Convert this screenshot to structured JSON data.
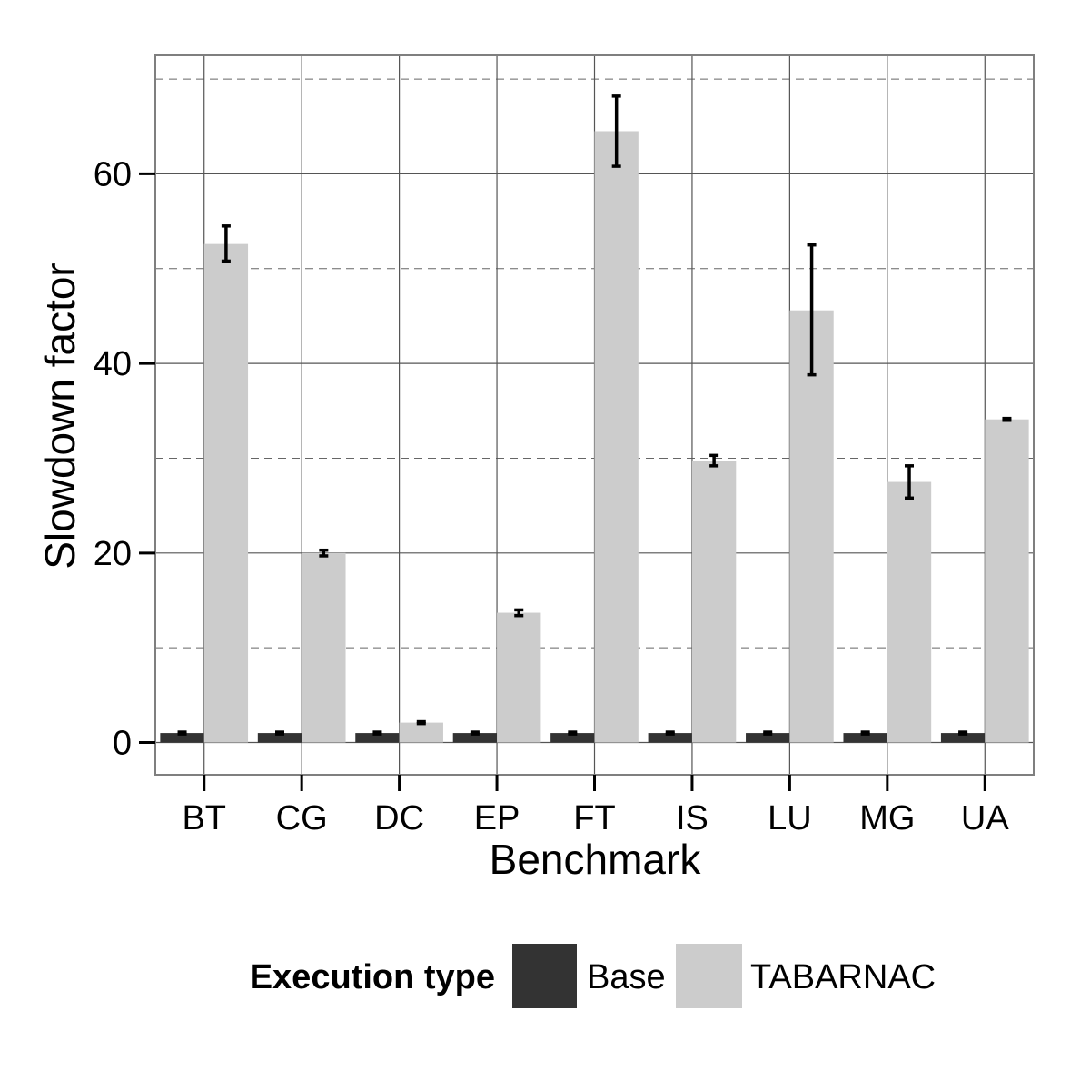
{
  "chart_data": {
    "type": "bar",
    "xlabel": "Benchmark",
    "ylabel": "Slowdown factor",
    "categories": [
      "BT",
      "CG",
      "DC",
      "EP",
      "FT",
      "IS",
      "LU",
      "MG",
      "UA"
    ],
    "series": [
      {
        "name": "Base",
        "color": "#333333",
        "values": [
          1,
          1,
          1,
          1,
          1,
          1,
          1,
          1,
          1
        ],
        "error_low": [
          0.9,
          0.9,
          0.9,
          0.9,
          0.9,
          0.9,
          0.9,
          0.9,
          0.9
        ],
        "error_high": [
          1.1,
          1.1,
          1.1,
          1.1,
          1.1,
          1.1,
          1.1,
          1.1,
          1.1
        ]
      },
      {
        "name": "TABARNAC",
        "color": "#cccccc",
        "values": [
          52.6,
          20.0,
          2.1,
          13.7,
          64.5,
          29.7,
          45.6,
          27.5,
          34.1
        ],
        "error_low": [
          50.8,
          19.7,
          2.0,
          13.4,
          60.8,
          29.2,
          38.8,
          25.8,
          34.0
        ],
        "error_high": [
          54.5,
          20.3,
          2.2,
          14.0,
          68.2,
          30.3,
          52.5,
          29.2,
          34.2
        ]
      }
    ],
    "ylim": [
      -3.4,
      72.5
    ],
    "yticks": [
      0,
      20,
      40,
      60
    ],
    "ytick_labels": [
      "0",
      "20",
      "40",
      "60"
    ],
    "minor_gridlines": [
      10,
      30,
      50,
      70
    ],
    "grid": true,
    "legend": {
      "title": "Execution type",
      "position": "bottom",
      "entries": [
        "Base",
        "TABARNAC"
      ]
    }
  }
}
